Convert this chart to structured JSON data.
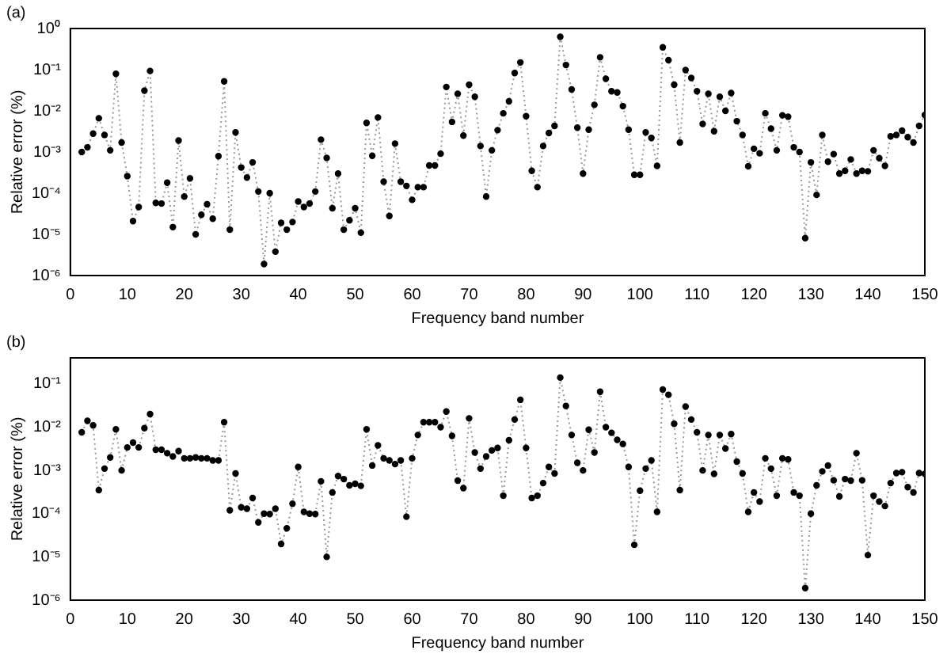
{
  "chart_data": [
    {
      "type": "line",
      "title": "(a)",
      "xlabel": "Frequency band number",
      "ylabel": "Relative error (%)",
      "log": "y",
      "marker": "circle",
      "line_style": "dotted",
      "xlim": [
        0,
        150
      ],
      "xticks": [
        0,
        10,
        20,
        30,
        40,
        50,
        60,
        70,
        80,
        90,
        100,
        110,
        120,
        130,
        140,
        150
      ],
      "ylim": [
        1e-06,
        1
      ],
      "yticks": [
        {
          "value": 1e-06,
          "label": "10⁻⁶"
        },
        {
          "value": 1e-05,
          "label": "10⁻⁵"
        },
        {
          "value": 0.0001,
          "label": "10⁻⁴"
        },
        {
          "value": 0.001,
          "label": "10⁻³"
        },
        {
          "value": 0.01,
          "label": "10⁻²"
        },
        {
          "value": 0.1,
          "label": "10⁻¹"
        },
        {
          "value": 1,
          "label": "10⁰"
        }
      ],
      "x": [
        2,
        3,
        4,
        5,
        6,
        7,
        8,
        9,
        10,
        11,
        12,
        13,
        14,
        15,
        16,
        17,
        18,
        19,
        20,
        21,
        22,
        23,
        24,
        25,
        26,
        27,
        28,
        29,
        30,
        31,
        32,
        33,
        34,
        35,
        36,
        37,
        38,
        39,
        40,
        41,
        42,
        43,
        44,
        45,
        46,
        47,
        48,
        49,
        50,
        51,
        52,
        53,
        54,
        55,
        56,
        57,
        58,
        59,
        60,
        61,
        62,
        63,
        64,
        65,
        66,
        67,
        68,
        69,
        70,
        71,
        72,
        73,
        74,
        75,
        76,
        77,
        78,
        79,
        80,
        81,
        82,
        83,
        84,
        85,
        86,
        87,
        88,
        89,
        90,
        91,
        92,
        93,
        94,
        95,
        96,
        97,
        98,
        99,
        100,
        101,
        102,
        103,
        104,
        105,
        106,
        107,
        108,
        109,
        110,
        111,
        112,
        113,
        114,
        115,
        116,
        117,
        118,
        119,
        120,
        121,
        122,
        123,
        124,
        125,
        126,
        127,
        128,
        129,
        130,
        131,
        132,
        133,
        134,
        135,
        136,
        137,
        138,
        139,
        140,
        141,
        142,
        143,
        144,
        145,
        146,
        147,
        148,
        149,
        150
      ],
      "series": [
        {
          "color": "#000000",
          "values": [
            0.001,
            0.0013,
            0.0028,
            0.0066,
            0.0026,
            0.0011,
            0.079,
            0.0017,
            0.00026,
            2.1e-05,
            4.6e-05,
            0.031,
            0.093,
            5.8e-05,
            5.6e-05,
            0.00018,
            1.5e-05,
            0.0019,
            8.3e-05,
            0.00023,
            1e-05,
            3e-05,
            5.4e-05,
            2.4e-05,
            0.00079,
            0.052,
            1.3e-05,
            0.003,
            0.00042,
            0.00024,
            0.00056,
            0.00011,
            1.9e-06,
            0.0001,
            3.8e-06,
            1.9e-05,
            1.3e-05,
            2e-05,
            6.3e-05,
            4.6e-05,
            5.6e-05,
            0.00011,
            0.002,
            0.00072,
            4.3e-05,
            0.0003,
            1.3e-05,
            2.2e-05,
            4.3e-05,
            1.1e-05,
            0.0051,
            0.00081,
            0.0069,
            0.00019,
            2.8e-05,
            0.0016,
            0.00019,
            0.00015,
            6.9e-05,
            0.00014,
            0.00014,
            0.00047,
            0.00047,
            0.00091,
            0.038,
            0.0054,
            0.026,
            0.0025,
            0.043,
            0.022,
            0.0014,
            8.3e-05,
            0.0011,
            0.0034,
            0.0087,
            0.017,
            0.083,
            0.15,
            0.0074,
            0.00035,
            0.00014,
            0.0014,
            0.0029,
            0.0043,
            0.63,
            0.13,
            0.033,
            0.0039,
            0.0003,
            0.0035,
            0.014,
            0.2,
            0.06,
            0.03,
            0.028,
            0.013,
            0.0035,
            0.00028,
            0.00028,
            0.003,
            0.0022,
            0.00046,
            0.35,
            0.17,
            0.043,
            0.0017,
            0.098,
            0.063,
            0.03,
            0.0048,
            0.026,
            0.0032,
            0.022,
            0.01,
            0.027,
            0.0056,
            0.0026,
            0.00045,
            0.0012,
            0.00093,
            0.0087,
            0.0037,
            0.0011,
            0.0078,
            0.0072,
            0.0013,
            0.001,
            8.1e-06,
            0.00056,
            9.1e-05,
            0.0026,
            0.00058,
            0.00089,
            0.0003,
            0.00035,
            0.00066,
            0.0003,
            0.00035,
            0.00034,
            0.0011,
            0.00071,
            0.00046,
            0.0024,
            0.0026,
            0.0033,
            0.0023,
            0.0017,
            0.0043,
            0.0079
          ]
        }
      ]
    },
    {
      "type": "line",
      "title": "(b)",
      "xlabel": "Frequency band number",
      "ylabel": "Relative error (%)",
      "log": "y",
      "marker": "circle",
      "line_style": "dotted",
      "xlim": [
        0,
        150
      ],
      "xticks": [
        0,
        10,
        20,
        30,
        40,
        50,
        60,
        70,
        80,
        90,
        100,
        110,
        120,
        130,
        140,
        150
      ],
      "ylim": [
        1e-06,
        0.4
      ],
      "yticks": [
        {
          "value": 1e-06,
          "label": "10⁻⁶"
        },
        {
          "value": 1e-05,
          "label": "10⁻⁵"
        },
        {
          "value": 0.0001,
          "label": "10⁻⁴"
        },
        {
          "value": 0.001,
          "label": "10⁻³"
        },
        {
          "value": 0.01,
          "label": "10⁻²"
        },
        {
          "value": 0.1,
          "label": "10⁻¹"
        }
      ],
      "x": [
        2,
        3,
        4,
        5,
        6,
        7,
        8,
        9,
        10,
        11,
        12,
        13,
        14,
        15,
        16,
        17,
        18,
        19,
        20,
        21,
        22,
        23,
        24,
        25,
        26,
        27,
        28,
        29,
        30,
        31,
        32,
        33,
        34,
        35,
        36,
        37,
        38,
        39,
        40,
        41,
        42,
        43,
        44,
        45,
        46,
        47,
        48,
        49,
        50,
        51,
        52,
        53,
        54,
        55,
        56,
        57,
        58,
        59,
        60,
        61,
        62,
        63,
        64,
        65,
        66,
        67,
        68,
        69,
        70,
        71,
        72,
        73,
        74,
        75,
        76,
        77,
        78,
        79,
        80,
        81,
        82,
        83,
        84,
        85,
        86,
        87,
        88,
        89,
        90,
        91,
        92,
        93,
        94,
        95,
        96,
        97,
        98,
        99,
        100,
        101,
        102,
        103,
        104,
        105,
        106,
        107,
        108,
        109,
        110,
        111,
        112,
        113,
        114,
        115,
        116,
        117,
        118,
        119,
        120,
        121,
        122,
        123,
        124,
        125,
        126,
        127,
        128,
        129,
        130,
        131,
        132,
        133,
        134,
        135,
        136,
        137,
        138,
        139,
        140,
        141,
        142,
        143,
        144,
        145,
        146,
        147,
        148,
        149,
        150
      ],
      "series": [
        {
          "color": "#000000",
          "values": [
            0.0076,
            0.014,
            0.011,
            0.00035,
            0.0011,
            0.002,
            0.0089,
            0.001,
            0.0034,
            0.0044,
            0.0034,
            0.0095,
            0.02,
            0.003,
            0.003,
            0.0025,
            0.0021,
            0.0028,
            0.0019,
            0.0019,
            0.002,
            0.0019,
            0.0019,
            0.0017,
            0.0017,
            0.013,
            0.00012,
            0.00085,
            0.00014,
            0.00013,
            0.00023,
            6.3e-05,
            0.0001,
            9.8e-05,
            0.00013,
            2e-05,
            4.6e-05,
            0.00017,
            0.0012,
            0.00011,
            0.0001,
            9.8e-05,
            0.00056,
            1e-05,
            0.00031,
            0.00074,
            0.00063,
            0.00045,
            0.00049,
            0.00044,
            0.0089,
            0.0013,
            0.0038,
            0.0019,
            0.0017,
            0.0014,
            0.0017,
            8.5e-05,
            0.0019,
            0.0066,
            0.013,
            0.013,
            0.013,
            0.01,
            0.023,
            0.0063,
            0.00058,
            0.00039,
            0.016,
            0.0026,
            0.0011,
            0.0021,
            0.0029,
            0.0033,
            0.00026,
            0.005,
            0.015,
            0.043,
            0.0033,
            0.00023,
            0.00026,
            0.00051,
            0.0012,
            0.00085,
            0.14,
            0.031,
            0.0066,
            0.0015,
            0.001,
            0.0087,
            0.0026,
            0.066,
            0.01,
            0.0074,
            0.0051,
            0.0041,
            0.0012,
            1.9e-05,
            0.00034,
            0.0011,
            0.0017,
            0.00011,
            0.074,
            0.056,
            0.012,
            0.00035,
            0.03,
            0.015,
            0.0076,
            0.001,
            0.0066,
            0.00083,
            0.0066,
            0.0032,
            0.0069,
            0.0016,
            0.00085,
            0.00011,
            0.00031,
            0.00019,
            0.0019,
            0.0011,
            0.00026,
            0.0019,
            0.0018,
            0.00031,
            0.00026,
            1.9e-06,
            0.0001,
            0.00045,
            0.00095,
            0.0013,
            0.00059,
            0.00025,
            0.00063,
            0.00058,
            0.0025,
            0.00059,
            1.1e-05,
            0.00026,
            0.00019,
            0.00015,
            0.00051,
            0.00087,
            0.00091,
            0.00041,
            0.00031,
            0.00087,
            0.00083
          ]
        }
      ]
    }
  ]
}
